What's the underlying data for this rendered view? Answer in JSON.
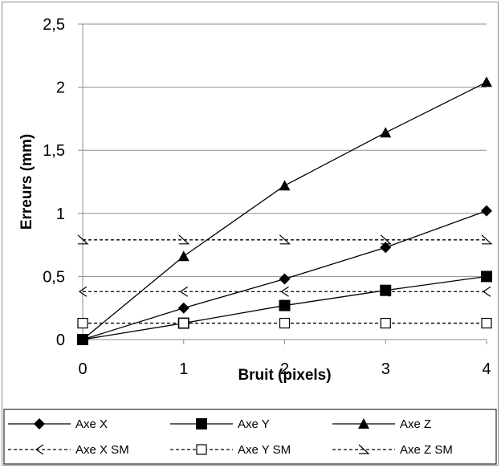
{
  "chart_data": {
    "type": "line",
    "title": "",
    "xlabel": "Bruit (pixels)",
    "ylabel": "Erreurs (mm)",
    "x": [
      0,
      1,
      2,
      3,
      4
    ],
    "x_tick_labels": [
      "0",
      "1",
      "2",
      "3",
      "4"
    ],
    "xlim": [
      0,
      4
    ],
    "ylim": [
      0,
      2.5
    ],
    "y_ticks": [
      0,
      0.5,
      1,
      1.5,
      2,
      2.5
    ],
    "y_tick_labels": [
      "0",
      "0,5",
      "1",
      "1,5",
      "2",
      "2,5"
    ],
    "grid": "horizontal",
    "legend_position": "bottom",
    "series": [
      {
        "name": "Axe X",
        "values": [
          0,
          0.25,
          0.48,
          0.73,
          1.02
        ],
        "line": "solid",
        "marker": "diamond-filled"
      },
      {
        "name": "Axe Y",
        "values": [
          0,
          0.13,
          0.27,
          0.39,
          0.5
        ],
        "line": "solid",
        "marker": "square-filled"
      },
      {
        "name": "Axe Z",
        "values": [
          0,
          0.66,
          1.22,
          1.64,
          2.04
        ],
        "line": "solid",
        "marker": "triangle-filled"
      },
      {
        "name": "Axe X SM",
        "values": [
          0.38,
          0.38,
          0.38,
          0.38,
          0.38
        ],
        "line": "dashed",
        "marker": "chevron-left"
      },
      {
        "name": "Axe Y SM",
        "values": [
          0.13,
          0.13,
          0.13,
          0.13,
          0.13
        ],
        "line": "dashed",
        "marker": "square-open"
      },
      {
        "name": "Axe Z SM",
        "values": [
          0.79,
          0.79,
          0.79,
          0.79,
          0.79
        ],
        "line": "dashed",
        "marker": "triangle-open"
      }
    ],
    "colors": {
      "line": "#000000",
      "grid": "#8c8c8c"
    }
  }
}
